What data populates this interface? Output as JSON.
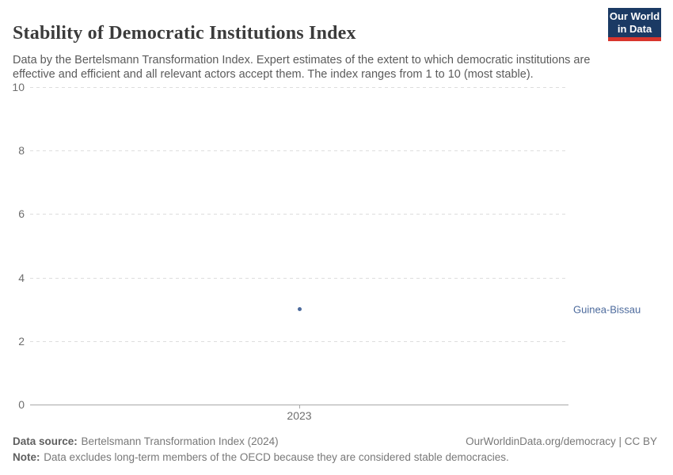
{
  "header": {
    "title": "Stability of Democratic Institutions Index",
    "subtitle": "Data by the Bertelsmann Transformation Index. Expert estimates of the extent to which democratic institutions are effective and efficient and all relevant actors accept them. The index ranges from 1 to 10 (most stable)."
  },
  "logo": {
    "line1": "Our World",
    "line2": "in Data",
    "bg_color": "#1b3a64",
    "accent_color": "#d8352c"
  },
  "chart_data": {
    "type": "scatter",
    "title": "Stability of Democratic Institutions Index",
    "x": [
      "2023"
    ],
    "series": [
      {
        "name": "Guinea-Bissau",
        "values": [
          3
        ]
      }
    ],
    "ylim": [
      0,
      10
    ],
    "yticks": [
      0,
      2,
      4,
      6,
      8,
      10
    ],
    "xlabel": "",
    "ylabel": "",
    "grid": "horizontal-dashed",
    "legend_position": "right-of-plot",
    "point_color": "#4c6a9c",
    "entity_label_color": "#4c6a9c"
  },
  "footer": {
    "source_label": "Data source:",
    "source_text": "Bertelsmann Transformation Index (2024)",
    "note_label": "Note:",
    "note_text": "Data excludes long-term members of the OECD because they are considered stable democracies.",
    "link": "OurWorldinData.org/democracy | CC BY"
  },
  "colors": {
    "title": "#3b3b3b",
    "subtitle": "#5b5b5b",
    "tick_label": "#6e6e6e",
    "gridline": "#dddddd",
    "axis_line": "#a8a8a8"
  }
}
